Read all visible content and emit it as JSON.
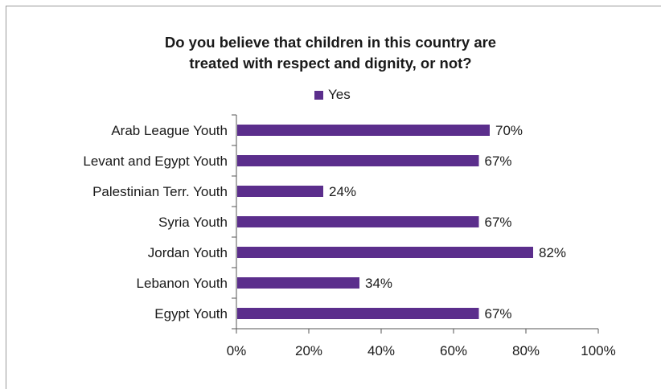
{
  "chart_data": {
    "type": "bar",
    "orientation": "horizontal",
    "title_lines": [
      "Do you believe that children in this country are",
      "treated with respect and dignity, or not?"
    ],
    "categories": [
      "Arab League Youth",
      "Levant and Egypt Youth",
      "Palestinian Terr. Youth",
      "Syria Youth",
      "Jordan Youth",
      "Lebanon Youth",
      "Egypt Youth"
    ],
    "series": [
      {
        "name": "Yes",
        "color": "#5b2e8c",
        "values": [
          70,
          67,
          24,
          67,
          82,
          34,
          67
        ],
        "value_labels": [
          "70%",
          "67%",
          "24%",
          "67%",
          "82%",
          "34%",
          "67%"
        ]
      }
    ],
    "xlim": [
      0,
      100
    ],
    "xticks": [
      0,
      20,
      40,
      60,
      80,
      100
    ],
    "xtick_labels": [
      "0%",
      "20%",
      "40%",
      "60%",
      "80%",
      "100%"
    ],
    "legend_position": "top-center",
    "grid": false
  }
}
